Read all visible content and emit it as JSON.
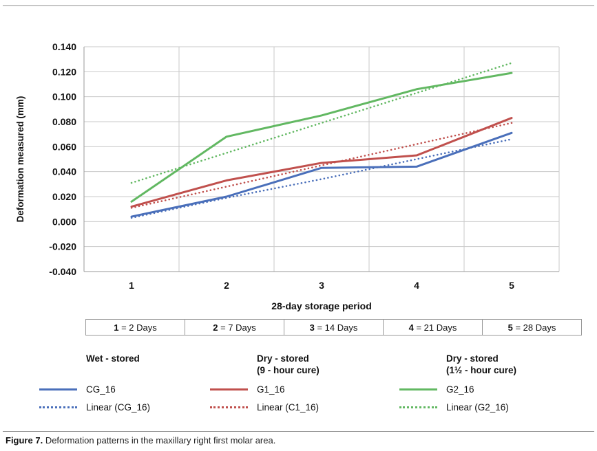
{
  "figure": {
    "caption_prefix": "Figure 7.",
    "caption_text": "Deformation patterns in the maxillary right first molar area."
  },
  "colors": {
    "blue": "#4a6fba",
    "red": "#c0504d",
    "green": "#62b862",
    "gridline": "#c8c8c8",
    "axis": "#9a9a9a",
    "text": "#111111"
  },
  "chart_data": {
    "type": "line",
    "title": "",
    "xlabel": "28-day storage period",
    "ylabel": "Deformation measured (mm)",
    "ylim": [
      -0.04,
      0.14
    ],
    "ytick_step": 0.02,
    "grid": true,
    "categories": [
      "1",
      "2",
      "3",
      "4",
      "5"
    ],
    "series": [
      {
        "name": "CG_16",
        "style": "solid",
        "color": "#4a6fba",
        "values": [
          0.004,
          0.02,
          0.043,
          0.044,
          0.071
        ]
      },
      {
        "name": "G1_16",
        "style": "solid",
        "color": "#c0504d",
        "values": [
          0.012,
          0.033,
          0.047,
          0.053,
          0.083
        ]
      },
      {
        "name": "G2_16",
        "style": "solid",
        "color": "#62b862",
        "values": [
          0.016,
          0.068,
          0.085,
          0.106,
          0.119
        ]
      },
      {
        "name": "Linear (CG_16)",
        "style": "dotted",
        "color": "#4a6fba",
        "values": [
          0.003,
          0.019,
          0.034,
          0.05,
          0.066
        ]
      },
      {
        "name": "Linear (C1_16)",
        "style": "dotted",
        "color": "#c0504d",
        "values": [
          0.011,
          0.028,
          0.045,
          0.062,
          0.079
        ]
      },
      {
        "name": "Linear (G2_16)",
        "style": "dotted",
        "color": "#62b862",
        "values": [
          0.031,
          0.055,
          0.079,
          0.103,
          0.127
        ]
      }
    ]
  },
  "storage_table": {
    "cells": [
      {
        "num": "1",
        "rest": " = 2 Days"
      },
      {
        "num": "2",
        "rest": " = 7 Days"
      },
      {
        "num": "3",
        "rest": " = 14 Days"
      },
      {
        "num": "4",
        "rest": " = 21 Days"
      },
      {
        "num": "5",
        "rest": " = 28 Days"
      }
    ]
  },
  "legend": {
    "columns": [
      {
        "header_line1": "Wet - stored",
        "header_line2": "",
        "solid_label": "CG_16",
        "dotted_label": "Linear (CG_16)",
        "color": "#4a6fba"
      },
      {
        "header_line1": "Dry - stored",
        "header_line2": "(9 - hour cure)",
        "solid_label": "G1_16",
        "dotted_label": "Linear (C1_16)",
        "color": "#c0504d"
      },
      {
        "header_line1": "Dry - stored",
        "header_line2": "(1½ - hour cure)",
        "solid_label": "G2_16",
        "dotted_label": "Linear (G2_16)",
        "color": "#62b862"
      }
    ]
  }
}
